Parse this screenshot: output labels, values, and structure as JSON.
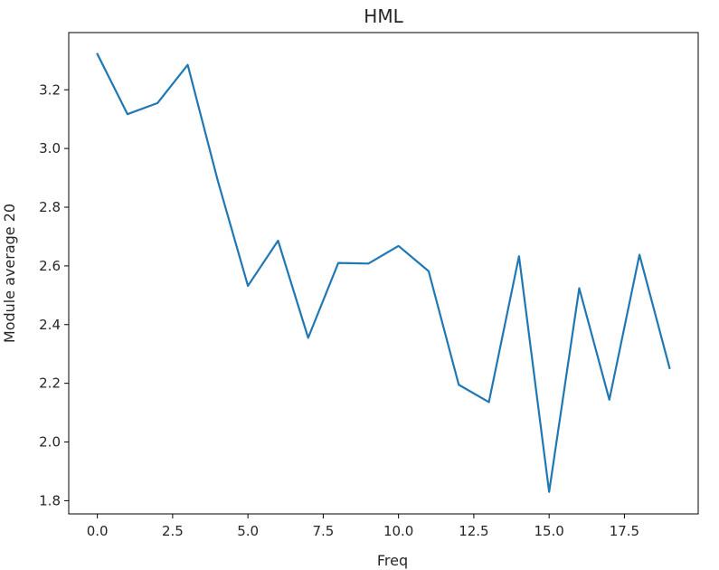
{
  "chart_data": {
    "type": "line",
    "title": "HML",
    "xlabel": "Freq",
    "ylabel": "Module average 20",
    "xlim": [
      -0.95,
      19.95
    ],
    "ylim": [
      1.755,
      3.395
    ],
    "xticks": [
      0.0,
      2.5,
      5.0,
      7.5,
      10.0,
      12.5,
      15.0,
      17.5
    ],
    "xtick_labels": [
      "0.0",
      "2.5",
      "5.0",
      "7.5",
      "10.0",
      "12.5",
      "15.0",
      "17.5"
    ],
    "yticks": [
      1.8,
      2.0,
      2.2,
      2.4,
      2.6,
      2.8,
      3.0,
      3.2
    ],
    "ytick_labels": [
      "1.8",
      "2.0",
      "2.2",
      "2.4",
      "2.6",
      "2.8",
      "3.0",
      "3.2"
    ],
    "grid": false,
    "series": [
      {
        "color": "#1f77b4",
        "x": [
          0,
          1,
          2,
          3,
          4,
          5,
          6,
          7,
          8,
          9,
          10,
          11,
          12,
          13,
          14,
          15,
          16,
          17,
          18,
          19
        ],
        "values": [
          3.322,
          3.117,
          3.155,
          3.285,
          2.89,
          2.532,
          2.686,
          2.355,
          2.61,
          2.608,
          2.668,
          2.582,
          2.195,
          2.136,
          2.633,
          1.83,
          2.524,
          2.144,
          2.638,
          2.252
        ]
      }
    ]
  }
}
